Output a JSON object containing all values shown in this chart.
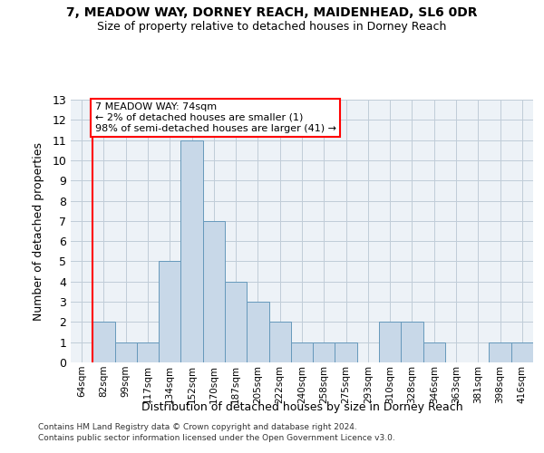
{
  "title1": "7, MEADOW WAY, DORNEY REACH, MAIDENHEAD, SL6 0DR",
  "title2": "Size of property relative to detached houses in Dorney Reach",
  "xlabel": "Distribution of detached houses by size in Dorney Reach",
  "ylabel": "Number of detached properties",
  "categories": [
    "64sqm",
    "82sqm",
    "99sqm",
    "117sqm",
    "134sqm",
    "152sqm",
    "170sqm",
    "187sqm",
    "205sqm",
    "222sqm",
    "240sqm",
    "258sqm",
    "275sqm",
    "293sqm",
    "310sqm",
    "328sqm",
    "346sqm",
    "363sqm",
    "381sqm",
    "398sqm",
    "416sqm"
  ],
  "values": [
    0,
    2,
    1,
    1,
    5,
    11,
    7,
    4,
    3,
    2,
    1,
    1,
    1,
    0,
    2,
    2,
    1,
    0,
    0,
    1,
    1
  ],
  "bar_color": "#c8d8e8",
  "bar_edge_color": "#6699bb",
  "annotation_text": "7 MEADOW WAY: 74sqm\n← 2% of detached houses are smaller (1)\n98% of semi-detached houses are larger (41) →",
  "annotation_box_color": "white",
  "annotation_box_edge_color": "red",
  "vline_color": "red",
  "ylim": [
    0,
    13
  ],
  "yticks": [
    0,
    1,
    2,
    3,
    4,
    5,
    6,
    7,
    8,
    9,
    10,
    11,
    12,
    13
  ],
  "footer1": "Contains HM Land Registry data © Crown copyright and database right 2024.",
  "footer2": "Contains public sector information licensed under the Open Government Licence v3.0.",
  "bg_color": "#edf2f7",
  "grid_color": "#c0ccd8"
}
